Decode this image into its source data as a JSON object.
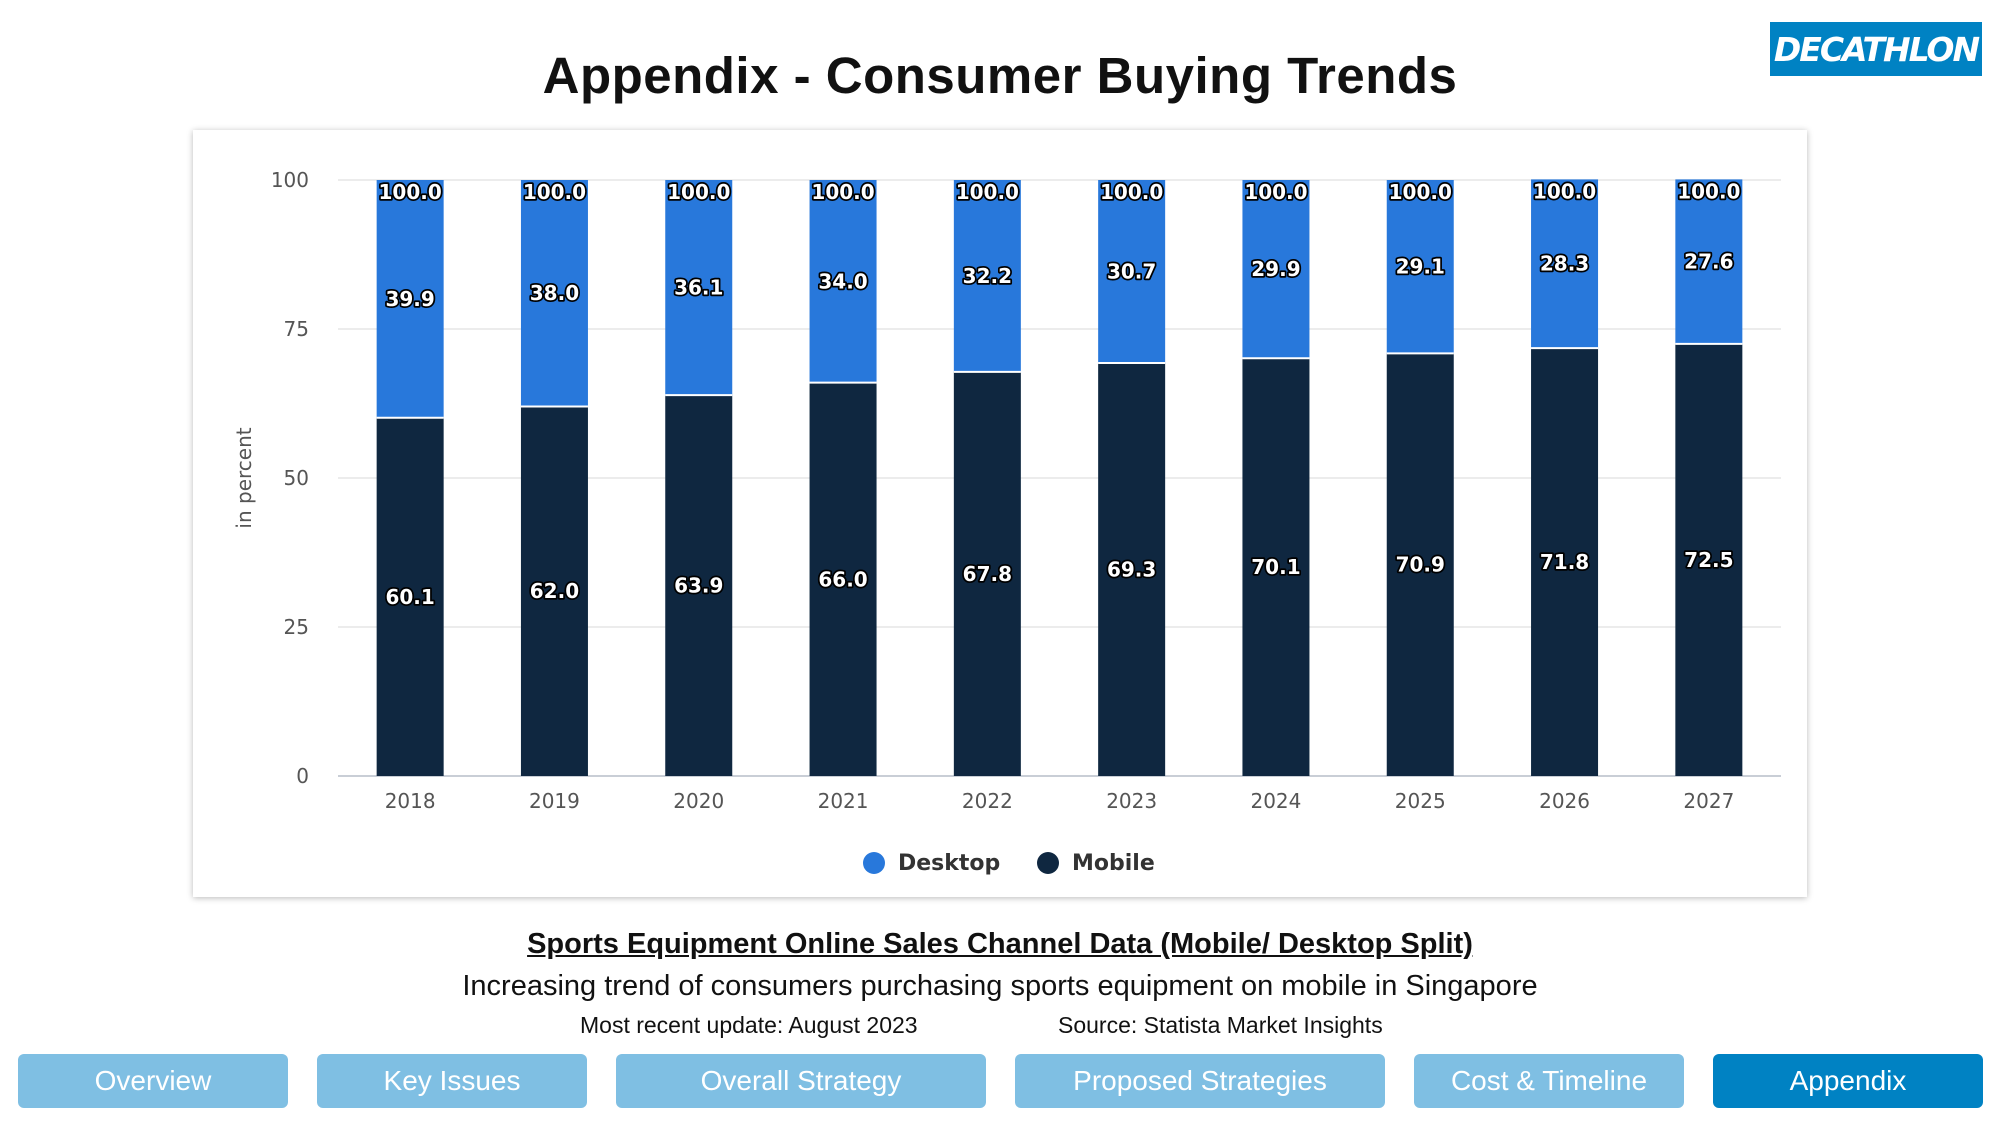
{
  "title": "Appendix - Consumer Buying Trends",
  "brand": {
    "logo_text": "DECATHLON",
    "color": "#0082c3"
  },
  "chart_data": {
    "type": "bar",
    "stacked": true,
    "categories": [
      "2018",
      "2019",
      "2020",
      "2021",
      "2022",
      "2023",
      "2024",
      "2025",
      "2026",
      "2027"
    ],
    "series": [
      {
        "name": "Mobile",
        "color": "#0f2740",
        "values": [
          60.1,
          62.0,
          63.9,
          66.0,
          67.8,
          69.3,
          70.1,
          70.9,
          71.8,
          72.5
        ]
      },
      {
        "name": "Desktop",
        "color": "#2878db",
        "values": [
          39.9,
          38.0,
          36.1,
          34.0,
          32.2,
          30.7,
          29.9,
          29.1,
          28.3,
          27.6
        ]
      }
    ],
    "totals": [
      100.0,
      100.0,
      100.0,
      100.0,
      100.0,
      100.0,
      100.0,
      100.0,
      100.0,
      100.0
    ],
    "ylabel": "in percent",
    "xlabel": "",
    "ylim": [
      0,
      100
    ],
    "yticks": [
      0,
      25,
      50,
      75,
      100
    ],
    "grid": true,
    "legend": {
      "position": "bottom",
      "order": [
        "Desktop",
        "Mobile"
      ]
    }
  },
  "caption": {
    "title": "Sports Equipment Online Sales Channel Data (Mobile/ Desktop Split)",
    "description": "Increasing trend of consumers purchasing sports equipment on mobile in Singapore",
    "update": "Most recent update: August 2023",
    "source": "Source: Statista Market Insights"
  },
  "nav": {
    "items": [
      {
        "label": "Overview",
        "active": false
      },
      {
        "label": "Key Issues",
        "active": false
      },
      {
        "label": "Overall Strategy",
        "active": false
      },
      {
        "label": "Proposed Strategies",
        "active": false
      },
      {
        "label": "Cost & Timeline",
        "active": false
      },
      {
        "label": "Appendix",
        "active": true
      }
    ]
  }
}
